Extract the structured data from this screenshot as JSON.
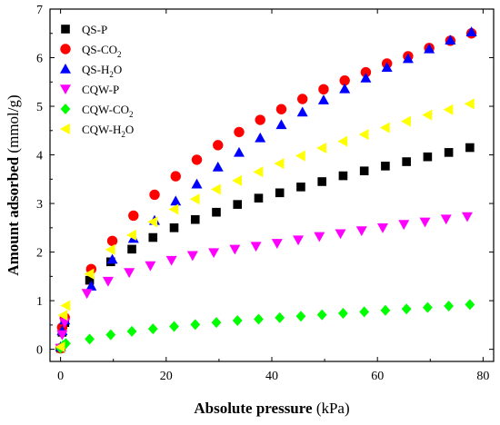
{
  "chart_data": {
    "type": "scatter",
    "xlabel": {
      "bold": "Absolute pressure",
      "normal": " (kPa)"
    },
    "ylabel": {
      "bold": "Amount adsorbed",
      "normal": " (mmol/g)"
    },
    "xlim": [
      -2,
      82
    ],
    "ylim": [
      -0.25,
      7
    ],
    "x_ticks": [
      0,
      20,
      40,
      60,
      80
    ],
    "y_ticks": [
      0,
      1,
      2,
      3,
      4,
      5,
      6,
      7
    ],
    "legend_position": "top-left",
    "series": [
      {
        "name": "QS-P",
        "legend_main": "QS-P",
        "legend_sub": "",
        "legend_tail": "",
        "marker": "square",
        "color": "#000000",
        "points": [
          [
            0.0,
            0.02
          ],
          [
            0.3,
            0.35
          ],
          [
            0.8,
            0.55
          ],
          [
            5.5,
            1.42
          ],
          [
            9.5,
            1.8
          ],
          [
            13.5,
            2.06
          ],
          [
            17.5,
            2.3
          ],
          [
            21.5,
            2.5
          ],
          [
            25.5,
            2.67
          ],
          [
            29.5,
            2.82
          ],
          [
            33.5,
            2.98
          ],
          [
            37.5,
            3.11
          ],
          [
            41.5,
            3.22
          ],
          [
            45.5,
            3.34
          ],
          [
            49.5,
            3.45
          ],
          [
            53.5,
            3.57
          ],
          [
            57.5,
            3.67
          ],
          [
            61.5,
            3.77
          ],
          [
            65.5,
            3.86
          ],
          [
            69.5,
            3.96
          ],
          [
            73.5,
            4.05
          ],
          [
            77.5,
            4.15
          ]
        ]
      },
      {
        "name": "QS-CO2",
        "legend_main": "QS-CO",
        "legend_sub": "2",
        "legend_tail": "",
        "marker": "circle",
        "color": "#ff0000",
        "points": [
          [
            0.0,
            0.02
          ],
          [
            0.3,
            0.45
          ],
          [
            0.8,
            0.65
          ],
          [
            5.8,
            1.65
          ],
          [
            9.8,
            2.23
          ],
          [
            13.8,
            2.75
          ],
          [
            17.8,
            3.18
          ],
          [
            21.8,
            3.56
          ],
          [
            25.8,
            3.9
          ],
          [
            29.8,
            4.2
          ],
          [
            33.8,
            4.47
          ],
          [
            37.8,
            4.72
          ],
          [
            41.8,
            4.94
          ],
          [
            45.8,
            5.15
          ],
          [
            49.8,
            5.35
          ],
          [
            53.8,
            5.53
          ],
          [
            57.8,
            5.7
          ],
          [
            61.8,
            5.88
          ],
          [
            65.8,
            6.03
          ],
          [
            69.8,
            6.2
          ],
          [
            73.8,
            6.35
          ],
          [
            77.8,
            6.5
          ]
        ]
      },
      {
        "name": "QS-H2O",
        "legend_main": "QS-H",
        "legend_sub": "2",
        "legend_tail": "O",
        "marker": "triangle-up",
        "color": "#0000ff",
        "points": [
          [
            0.0,
            0.05
          ],
          [
            0.3,
            0.38
          ],
          [
            0.8,
            0.6
          ],
          [
            5.8,
            1.3
          ],
          [
            9.8,
            1.85
          ],
          [
            13.8,
            2.28
          ],
          [
            17.8,
            2.65
          ],
          [
            21.8,
            3.05
          ],
          [
            25.8,
            3.4
          ],
          [
            29.8,
            3.75
          ],
          [
            33.8,
            4.05
          ],
          [
            37.8,
            4.35
          ],
          [
            41.8,
            4.62
          ],
          [
            45.8,
            4.88
          ],
          [
            49.8,
            5.13
          ],
          [
            53.8,
            5.36
          ],
          [
            57.8,
            5.58
          ],
          [
            61.8,
            5.8
          ],
          [
            65.8,
            5.98
          ],
          [
            69.8,
            6.18
          ],
          [
            73.8,
            6.36
          ],
          [
            77.8,
            6.53
          ]
        ]
      },
      {
        "name": "CQW-P",
        "legend_main": "CQW-P",
        "legend_sub": "",
        "legend_tail": "",
        "marker": "triangle-down",
        "color": "#ff00ff",
        "points": [
          [
            0.0,
            0.02
          ],
          [
            0.3,
            0.3
          ],
          [
            0.8,
            0.55
          ],
          [
            5.0,
            1.15
          ],
          [
            9.0,
            1.4
          ],
          [
            13.0,
            1.58
          ],
          [
            17.0,
            1.72
          ],
          [
            21.0,
            1.83
          ],
          [
            25.0,
            1.93
          ],
          [
            29.0,
            1.99
          ],
          [
            33.0,
            2.06
          ],
          [
            37.0,
            2.12
          ],
          [
            41.0,
            2.18
          ],
          [
            45.0,
            2.25
          ],
          [
            49.0,
            2.32
          ],
          [
            53.0,
            2.38
          ],
          [
            57.0,
            2.44
          ],
          [
            61.0,
            2.5
          ],
          [
            65.0,
            2.57
          ],
          [
            69.0,
            2.62
          ],
          [
            73.0,
            2.68
          ],
          [
            77.0,
            2.73
          ]
        ]
      },
      {
        "name": "CQW-CO2",
        "legend_main": "CQW-CO",
        "legend_sub": "2",
        "legend_tail": "",
        "marker": "diamond",
        "color": "#00ff00",
        "points": [
          [
            0.0,
            0.02
          ],
          [
            0.5,
            0.08
          ],
          [
            1.0,
            0.12
          ],
          [
            5.5,
            0.21
          ],
          [
            9.5,
            0.3
          ],
          [
            13.5,
            0.37
          ],
          [
            17.5,
            0.42
          ],
          [
            21.5,
            0.47
          ],
          [
            25.5,
            0.51
          ],
          [
            29.5,
            0.55
          ],
          [
            33.5,
            0.59
          ],
          [
            37.5,
            0.62
          ],
          [
            41.5,
            0.65
          ],
          [
            45.5,
            0.68
          ],
          [
            49.5,
            0.71
          ],
          [
            53.5,
            0.74
          ],
          [
            57.5,
            0.77
          ],
          [
            61.5,
            0.8
          ],
          [
            65.5,
            0.83
          ],
          [
            69.5,
            0.86
          ],
          [
            73.5,
            0.89
          ],
          [
            77.5,
            0.92
          ]
        ]
      },
      {
        "name": "CQW-H2O",
        "legend_main": "CQW-H",
        "legend_sub": "2",
        "legend_tail": "O",
        "marker": "triangle-left",
        "color": "#ffff00",
        "points": [
          [
            0.0,
            0.05
          ],
          [
            0.5,
            0.7
          ],
          [
            1.0,
            0.9
          ],
          [
            5.5,
            1.55
          ],
          [
            9.5,
            2.05
          ],
          [
            13.5,
            2.35
          ],
          [
            17.5,
            2.62
          ],
          [
            21.5,
            2.88
          ],
          [
            25.5,
            3.09
          ],
          [
            29.5,
            3.29
          ],
          [
            33.5,
            3.47
          ],
          [
            37.5,
            3.65
          ],
          [
            41.5,
            3.82
          ],
          [
            45.5,
            3.98
          ],
          [
            49.5,
            4.14
          ],
          [
            53.5,
            4.28
          ],
          [
            57.5,
            4.42
          ],
          [
            61.5,
            4.56
          ],
          [
            65.5,
            4.69
          ],
          [
            69.5,
            4.82
          ],
          [
            73.5,
            4.93
          ],
          [
            77.5,
            5.05
          ]
        ]
      }
    ]
  }
}
